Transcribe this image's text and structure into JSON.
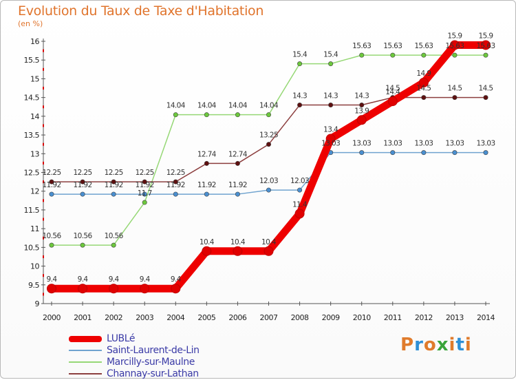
{
  "title": "Evolution du Taux de Taxe d'Habitation",
  "unit_label": "(en %)",
  "brand": {
    "text": "Proxiti",
    "colors": [
      "#e07b2c",
      "#2e8fd6",
      "#e07b2c",
      "#3aa43a",
      "#e07b2c",
      "#2e8fd6",
      "#e07b2c"
    ]
  },
  "chart_data": {
    "type": "line",
    "x": [
      "2000",
      "2001",
      "2002",
      "2003",
      "2004",
      "2005",
      "2006",
      "2007",
      "2008",
      "2009",
      "2010",
      "2011",
      "2012",
      "2013",
      "2014"
    ],
    "ylim": [
      9,
      16
    ],
    "yticks": [
      "9",
      "9.5",
      "10",
      "10.5",
      "11",
      "11.5",
      "12",
      "12.5",
      "13",
      "13.5",
      "14",
      "14.5",
      "15",
      "15.5",
      "16"
    ],
    "grid": false,
    "legend": "bottom-left",
    "series": [
      {
        "name": "LUBLé",
        "color": "#ee0000",
        "marker": "#e00000",
        "values": [
          9.4,
          9.4,
          9.4,
          9.4,
          9.4,
          10.4,
          10.4,
          10.4,
          11.4,
          13.4,
          13.9,
          14.4,
          14.9,
          15.9,
          15.9
        ],
        "labels": [
          "9.4",
          "9.4",
          "9.4",
          "9.4",
          "9.4",
          "10.4",
          "10.4",
          "10.4",
          "11.4",
          "13.4",
          "13.9",
          "14.4",
          "14.9",
          "15.9",
          "15.9"
        ]
      },
      {
        "name": "Saint-Laurent-de-Lin",
        "color": "#6fa3cf",
        "marker": "#4a8fd0",
        "values": [
          11.92,
          11.92,
          11.92,
          11.92,
          11.92,
          11.92,
          11.92,
          12.03,
          12.03,
          13.03,
          13.03,
          13.03,
          13.03,
          13.03,
          13.03
        ],
        "labels": [
          "11.92",
          "11.92",
          "11.92",
          "11.92",
          "11.92",
          "11.92",
          "11.92",
          "12.03",
          "12.03",
          "13.03",
          "13.03",
          "13.03",
          "13.03",
          "13.03",
          "13.03"
        ]
      },
      {
        "name": "Marcilly-sur-Maulne",
        "color": "#96d876",
        "marker": "#6cc83c",
        "values": [
          10.56,
          10.56,
          10.56,
          11.7,
          14.04,
          14.04,
          14.04,
          14.04,
          15.4,
          15.4,
          15.63,
          15.63,
          15.63,
          15.63,
          15.63
        ],
        "labels": [
          "10.56",
          "10.56",
          "10.56",
          "11.7",
          "14.04",
          "14.04",
          "14.04",
          "14.04",
          "15.4",
          "15.4",
          "15.63",
          "15.63",
          "15.63",
          "15.63",
          "15.63"
        ]
      },
      {
        "name": "Channay-sur-Lathan",
        "color": "#8c3e3e",
        "marker": "#5e1010",
        "values": [
          12.25,
          12.25,
          12.25,
          12.25,
          12.25,
          12.74,
          12.74,
          13.25,
          14.3,
          14.3,
          14.3,
          14.5,
          14.5,
          14.5,
          14.5
        ],
        "labels": [
          "12.25",
          "12.25",
          "12.25",
          "12.25",
          "12.25",
          "12.74",
          "12.74",
          "13.25",
          "14.3",
          "14.3",
          "14.3",
          "14.5",
          "14.5",
          "14.5",
          "14.5"
        ]
      }
    ]
  }
}
